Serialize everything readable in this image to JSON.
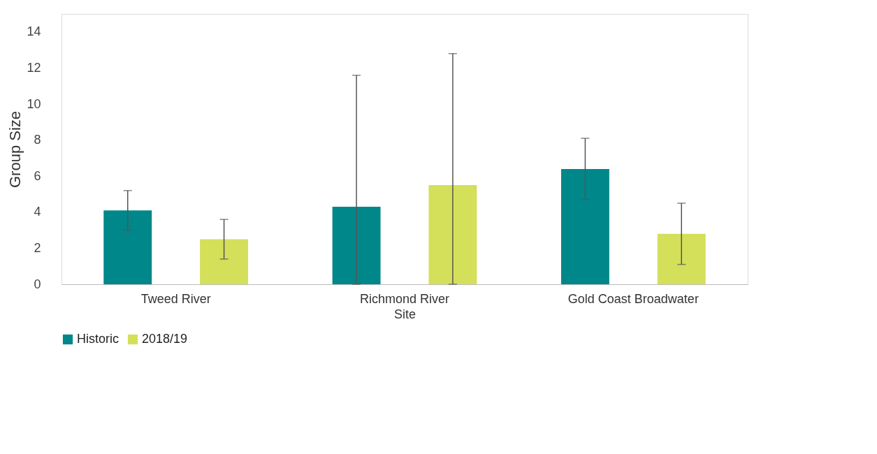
{
  "chart_data": {
    "type": "bar",
    "xlabel": "Site",
    "ylabel": "Group Size",
    "categories": [
      "Tweed River",
      "Richmond River",
      "Gold Coast Broadwater"
    ],
    "series": [
      {
        "name": "Historic",
        "color": "#00878a",
        "values": [
          4.1,
          4.3,
          6.4
        ],
        "errors": [
          [
            3.0,
            5.2
          ],
          [
            0,
            11.6
          ],
          [
            4.7,
            8.1
          ]
        ]
      },
      {
        "name": "2018/19",
        "color": "#d4df5a",
        "values": [
          2.5,
          5.5,
          2.8
        ],
        "errors": [
          [
            1.4,
            3.6
          ],
          [
            0,
            12.8
          ],
          [
            1.1,
            4.5
          ]
        ]
      }
    ],
    "ylim": [
      0,
      15
    ],
    "yticks": [
      0,
      2,
      4,
      6,
      8,
      10,
      12,
      14
    ],
    "grid": false,
    "legend": "bottom"
  }
}
